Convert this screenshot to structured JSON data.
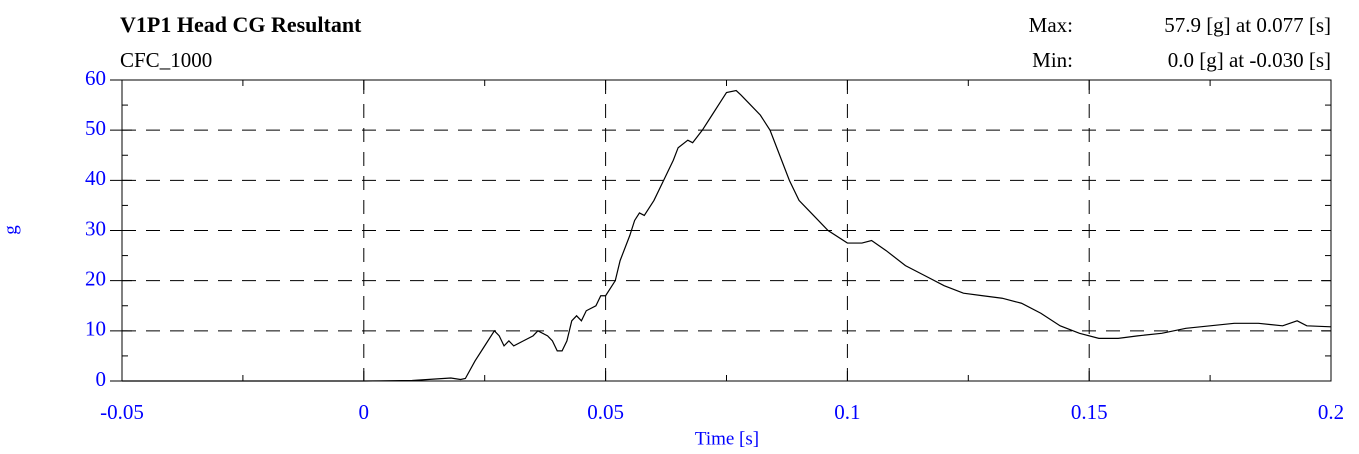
{
  "chart_data": {
    "type": "line",
    "title": "V1P1 Head CG Resultant",
    "subtitle": "CFC_1000",
    "annotations": [
      {
        "label": "Max:",
        "text": "57.9 [g] at 0.077 [s]"
      },
      {
        "label": "Min:",
        "text": "0.0 [g] at -0.030 [s]"
      }
    ],
    "x_label": "Time [s]",
    "y_label": "g",
    "color": "#000000",
    "tick_color": "#0000ff",
    "grid": true,
    "xlim": [
      -0.05,
      0.2
    ],
    "ylim": [
      0,
      60
    ],
    "xticks": [
      -0.05,
      0,
      0.05,
      0.1,
      0.15,
      0.2
    ],
    "yticks": [
      0,
      10,
      20,
      30,
      40,
      50,
      60
    ],
    "xminorticks": [
      -0.025,
      0.025,
      0.075,
      0.125,
      0.175
    ],
    "yminorticks": [
      5,
      15,
      25,
      35,
      45,
      55
    ],
    "x": [
      -0.05,
      0.0,
      0.01,
      0.018,
      0.02,
      0.021,
      0.023,
      0.025,
      0.027,
      0.028,
      0.029,
      0.03,
      0.031,
      0.033,
      0.035,
      0.036,
      0.038,
      0.039,
      0.04,
      0.041,
      0.042,
      0.043,
      0.044,
      0.045,
      0.046,
      0.048,
      0.049,
      0.05,
      0.052,
      0.053,
      0.055,
      0.056,
      0.057,
      0.058,
      0.06,
      0.062,
      0.064,
      0.065,
      0.067,
      0.068,
      0.07,
      0.072,
      0.074,
      0.075,
      0.077,
      0.078,
      0.08,
      0.082,
      0.084,
      0.086,
      0.088,
      0.09,
      0.093,
      0.096,
      0.1,
      0.103,
      0.105,
      0.108,
      0.112,
      0.116,
      0.12,
      0.124,
      0.128,
      0.132,
      0.136,
      0.14,
      0.144,
      0.148,
      0.152,
      0.156,
      0.16,
      0.165,
      0.17,
      0.175,
      0.18,
      0.185,
      0.19,
      0.193,
      0.195,
      0.2
    ],
    "values": [
      0,
      0,
      0.1,
      0.6,
      0.3,
      0.5,
      4,
      7,
      10,
      9,
      7,
      8,
      7,
      8,
      9,
      10,
      9,
      8,
      6,
      6,
      8,
      12,
      13,
      12,
      14,
      15,
      17,
      17,
      20,
      24,
      29,
      32,
      33.5,
      33,
      36,
      40,
      44,
      46.5,
      48,
      47.5,
      50,
      53,
      56,
      57.5,
      57.9,
      57,
      55,
      53,
      50,
      45,
      40,
      36,
      33,
      30,
      27.5,
      27.5,
      28,
      26,
      23,
      21,
      19,
      17.5,
      17,
      16.5,
      15.5,
      13.5,
      11,
      9.5,
      8.5,
      8.5,
      9,
      9.5,
      10.5,
      11,
      11.5,
      11.5,
      11,
      12,
      11,
      10.8
    ]
  }
}
